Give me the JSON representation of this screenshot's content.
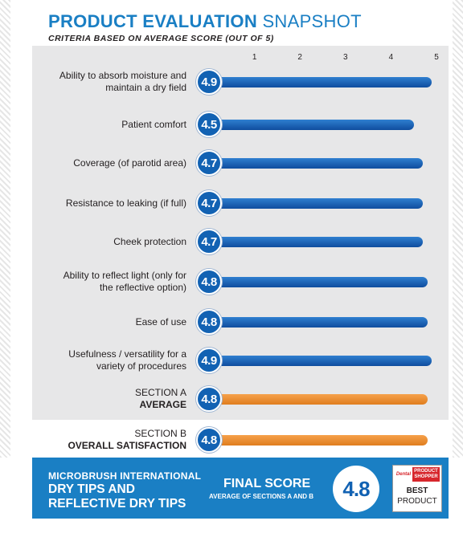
{
  "title_bold": "PRODUCT EVALUATION",
  "title_light": " SNAPSHOT",
  "subtitle": "CRITERIA BASED ON AVERAGE SCORE (OUT OF 5)",
  "chart_data": {
    "type": "bar",
    "orientation": "horizontal",
    "title": "PRODUCT EVALUATION SNAPSHOT",
    "subtitle": "CRITERIA BASED ON AVERAGE SCORE (OUT OF 5)",
    "xlim": [
      0,
      5
    ],
    "ticks": [
      1,
      2,
      3,
      4,
      5
    ],
    "rows": [
      {
        "label": "Ability to absorb moisture and maintain a dry field",
        "lines": [
          "Ability to absorb moisture and",
          "maintain a dry field"
        ],
        "value": 4.9,
        "badge": "4.9",
        "color": "#1262b3"
      },
      {
        "label": "Patient comfort",
        "lines": [
          "Patient comfort"
        ],
        "value": 4.5,
        "badge": "4.5",
        "color": "#1262b3"
      },
      {
        "label": "Coverage (of parotid area)",
        "lines": [
          "Coverage (of parotid area)"
        ],
        "value": 4.7,
        "badge": "4.7",
        "color": "#1262b3"
      },
      {
        "label": "Resistance to leaking (if full)",
        "lines": [
          "Resistance to leaking (if full)"
        ],
        "value": 4.7,
        "badge": "4.7",
        "color": "#1262b3"
      },
      {
        "label": "Cheek protection",
        "lines": [
          "Cheek protection"
        ],
        "value": 4.7,
        "badge": "4.7",
        "color": "#1262b3"
      },
      {
        "label": "Ability to reflect light (only for the reflective option)",
        "lines": [
          "Ability to reflect light (only for",
          "the reflective option)"
        ],
        "value": 4.8,
        "badge": "4.8",
        "color": "#1262b3"
      },
      {
        "label": "Ease of use",
        "lines": [
          "Ease of use"
        ],
        "value": 4.8,
        "badge": "4.8",
        "color": "#1262b3"
      },
      {
        "label": "Usefulness / versatility for a variety of procedures",
        "lines": [
          "Usefulness / versatility for a",
          "variety of procedures"
        ],
        "value": 4.9,
        "badge": "4.9",
        "color": "#1262b3"
      },
      {
        "label": "SECTION A AVERAGE",
        "lines": [
          "SECTION A"
        ],
        "bold": "AVERAGE",
        "value": 4.8,
        "badge": "4.8",
        "color": "#e8892d"
      },
      {
        "label": "SECTION B OVERALL SATISFACTION",
        "lines": [
          "SECTION B"
        ],
        "bold": "OVERALL SATISFACTION",
        "value": 4.8,
        "badge": "4.8",
        "color": "#e8892d"
      }
    ]
  },
  "footer": {
    "company": "MICROBRUSH INTERNATIONAL",
    "product_line1": "DRY TIPS AND",
    "product_line2": "REFLECTIVE DRY TIPS",
    "final_label": "FINAL SCORE",
    "final_sub": "AVERAGE OF SECTIONS A AND B",
    "final_value": "4.8"
  },
  "logo": {
    "brand": "Dental",
    "line1": "PRODUCT",
    "line2": "SHOPPER",
    "best": "BEST",
    "product": "PRODUCT"
  },
  "colors": {
    "brand_blue": "#1a7fc4",
    "bar_blue": "#1262b3",
    "bar_orange": "#e8892d",
    "panel_gray": "#e7e7e8"
  }
}
